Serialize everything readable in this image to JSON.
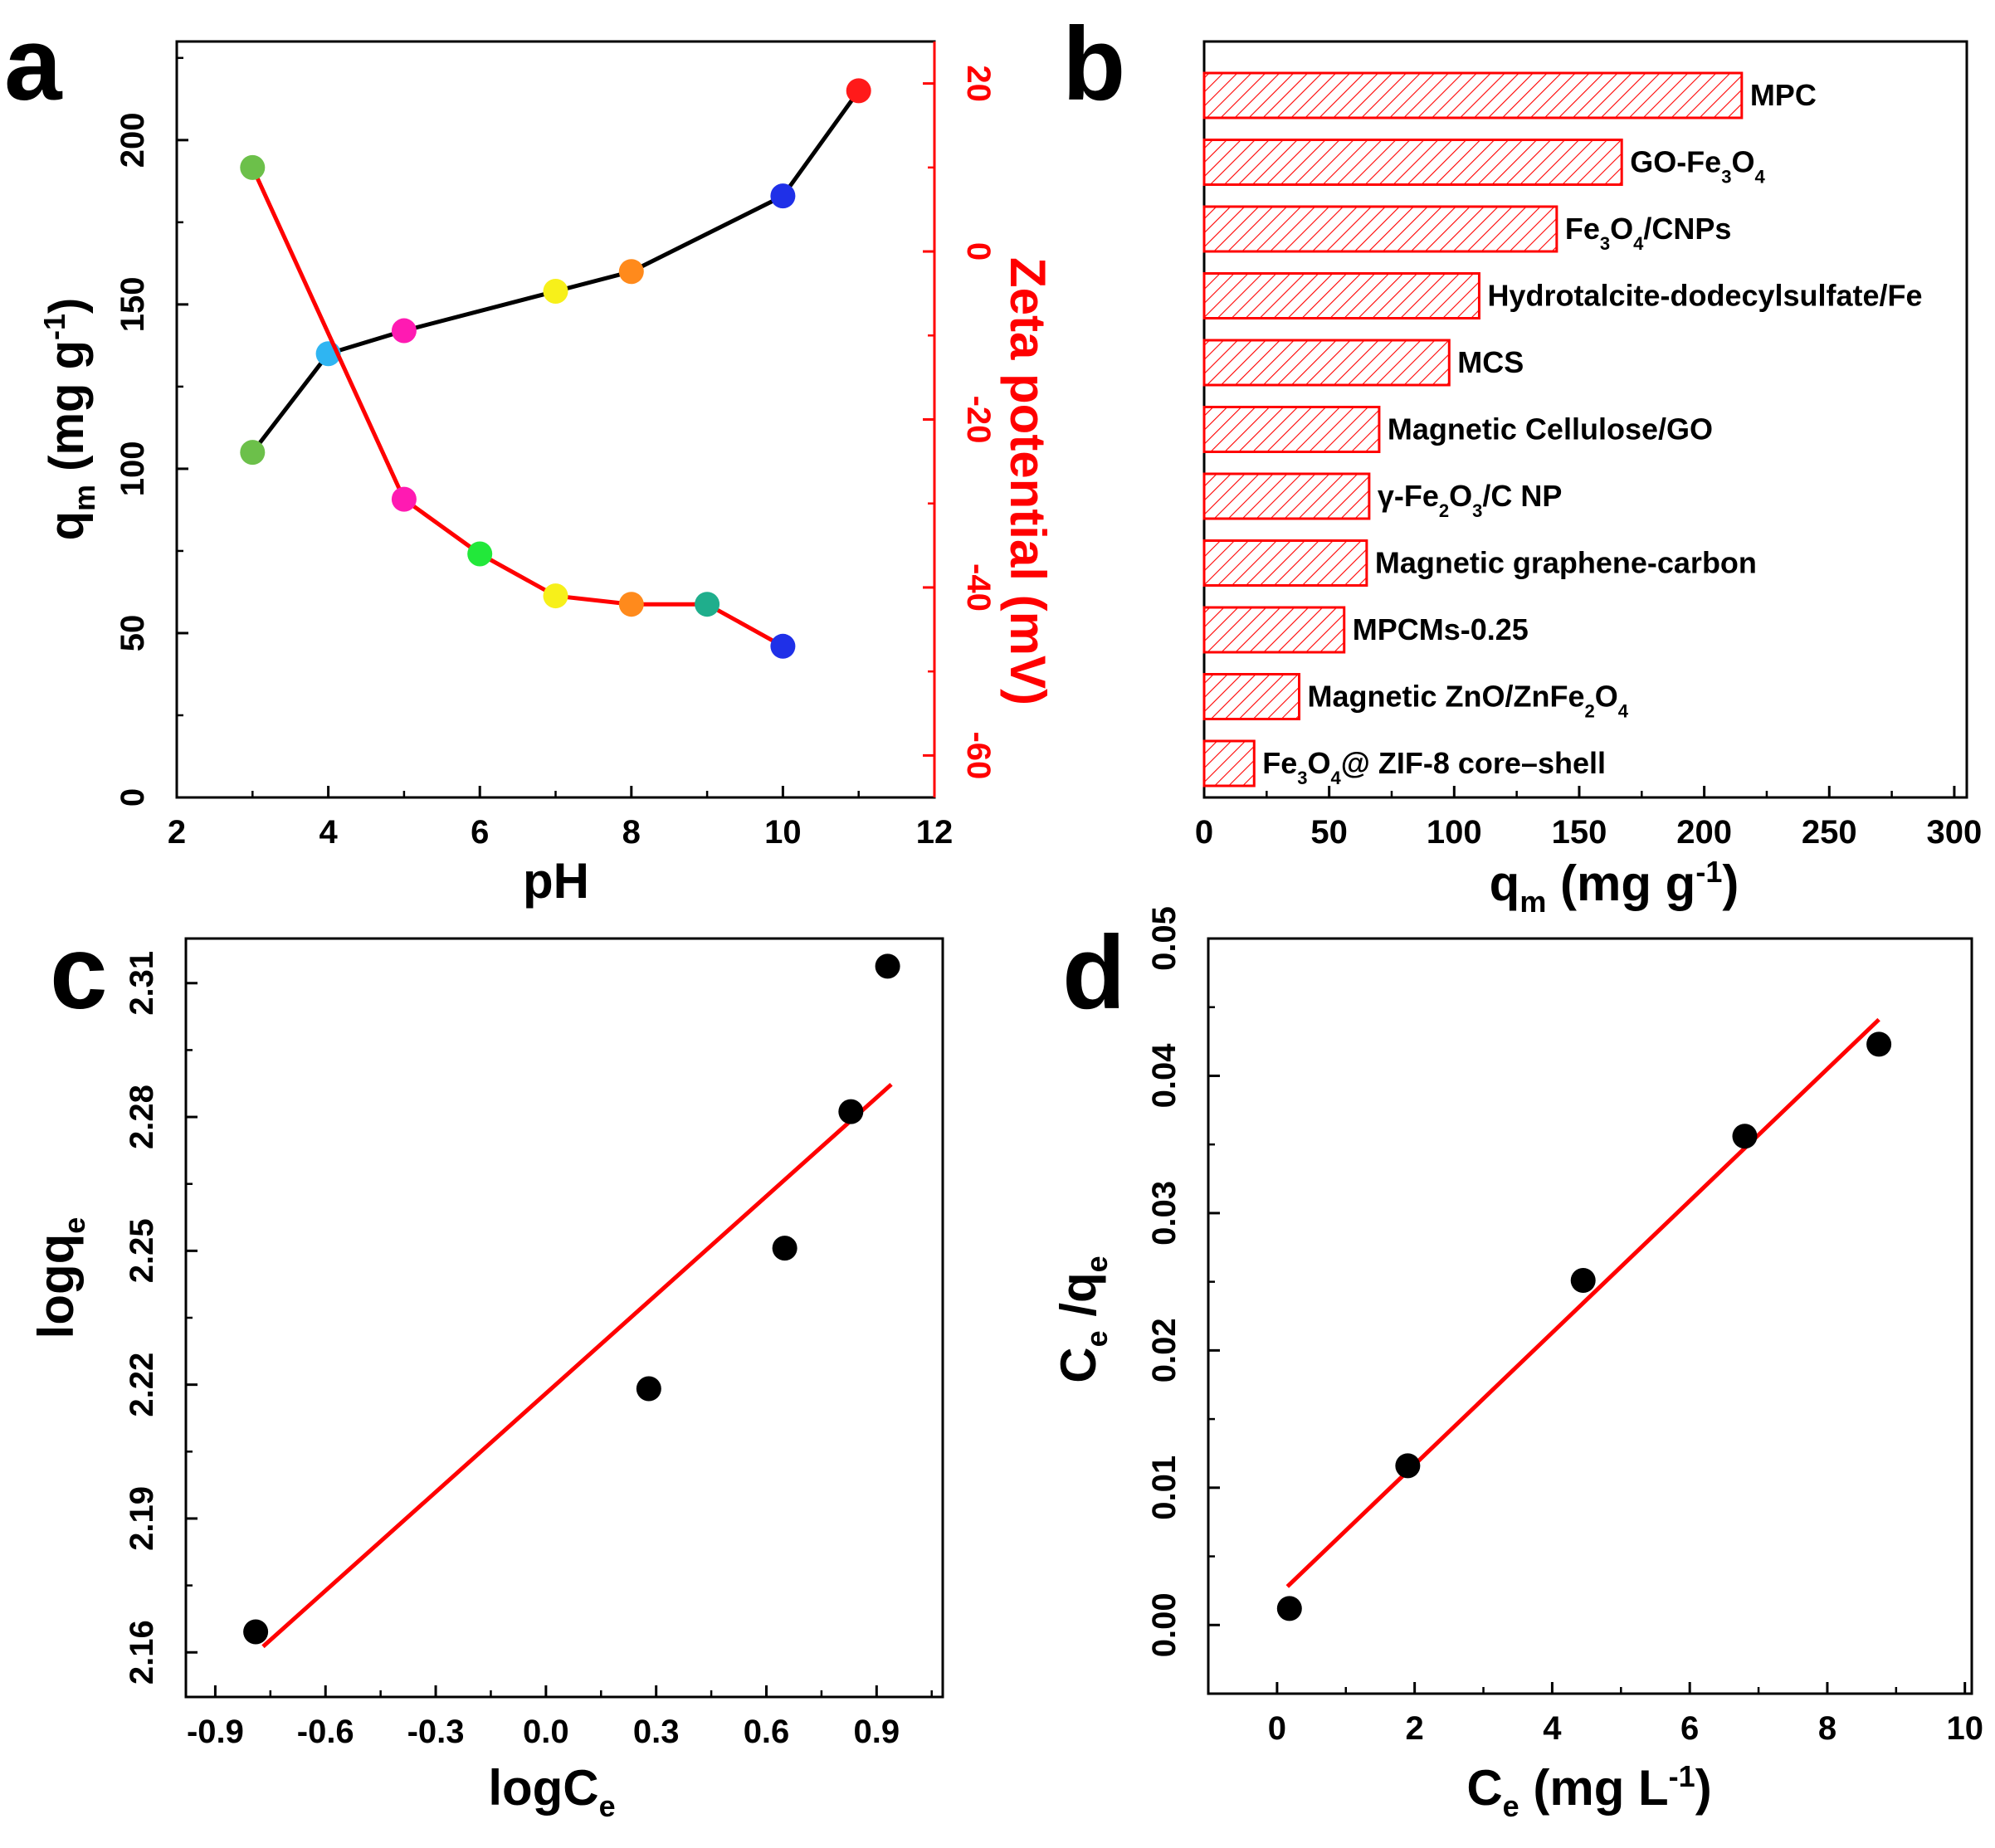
{
  "chart_data": [
    {
      "panel": "a",
      "type": "line",
      "panel_label": "a",
      "xlabel": "pH",
      "ylabel": {
        "main": "q",
        "sub": "m",
        "rest": " (mg g",
        "sup": "-1",
        "end": ")"
      },
      "y2label": "Zeta potential (mV)",
      "xlim": [
        2,
        12
      ],
      "ylim": [
        0,
        230
      ],
      "y2lim": [
        -65,
        25
      ],
      "xticks": [
        "2",
        "4",
        "6",
        "8",
        "10",
        "12"
      ],
      "yticks": [
        "0",
        "50",
        "100",
        "150",
        "200"
      ],
      "y2ticks": [
        "20",
        "0",
        "-20",
        "-40",
        "-60"
      ],
      "colors": {
        "qm_line": "#000000",
        "zeta_line": "#ff0000",
        "right_axis": "#ff0000"
      },
      "series": [
        {
          "name": "qm",
          "axis": "left",
          "x": [
            3,
            4,
            5,
            7,
            8,
            10,
            11
          ],
          "y": [
            105,
            135,
            142,
            154,
            160,
            183,
            215
          ],
          "marker_colors": [
            "#6cc04a",
            "#2fb5f2",
            "#ff1ab2",
            "#f7f01a",
            "#ff8a1c",
            "#1f30e8",
            "#ff1a1a"
          ]
        },
        {
          "name": "Zeta potential",
          "axis": "right",
          "x": [
            3,
            5,
            6,
            7,
            8,
            9,
            10
          ],
          "y": [
            10,
            -29.5,
            -36,
            -41,
            -42,
            -42,
            -47
          ],
          "marker_colors": [
            "#6cc04a",
            "#ff1ab2",
            "#22e83a",
            "#f7f01a",
            "#ff8a1c",
            "#1fae8c",
            "#1f30e8"
          ]
        }
      ]
    },
    {
      "panel": "b",
      "type": "bar",
      "orientation": "horizontal",
      "panel_label": "b",
      "xlabel": {
        "main": "q",
        "sub": "m",
        "rest": " (mg g",
        "sup": "-1",
        "end": ")"
      },
      "xlim": [
        0,
        305
      ],
      "xticks": [
        "0",
        "50",
        "100",
        "150",
        "200",
        "250",
        "300"
      ],
      "bar_color": "#ff0000",
      "categories": [
        [
          {
            "t": "MPC"
          }
        ],
        [
          {
            "t": "GO-Fe"
          },
          {
            "t": "3",
            "s": "sub"
          },
          {
            "t": "O"
          },
          {
            "t": "4",
            "s": "sub"
          }
        ],
        [
          {
            "t": "Fe"
          },
          {
            "t": "3",
            "s": "sub"
          },
          {
            "t": "O"
          },
          {
            "t": "4",
            "s": "sub"
          },
          {
            "t": "/CNPs"
          }
        ],
        [
          {
            "t": "Hydrotalcite-dodecylsulfate/Fe"
          }
        ],
        [
          {
            "t": "MCS"
          }
        ],
        [
          {
            "t": "Magnetic Cellulose/GO"
          }
        ],
        [
          {
            "t": "γ-Fe"
          },
          {
            "t": "2",
            "s": "sub"
          },
          {
            "t": "O"
          },
          {
            "t": "3",
            "s": "sub"
          },
          {
            "t": "/C NP"
          }
        ],
        [
          {
            "t": "Magnetic graphene-carbon"
          }
        ],
        [
          {
            "t": "MPCMs-0.25"
          }
        ],
        [
          {
            "t": "Magnetic ZnO/ZnFe"
          },
          {
            "t": "2",
            "s": "sub"
          },
          {
            "t": "O"
          },
          {
            "t": "4",
            "s": "sub"
          }
        ],
        [
          {
            "t": "Fe"
          },
          {
            "t": "3",
            "s": "sub"
          },
          {
            "t": "O"
          },
          {
            "t": "4",
            "s": "sub"
          },
          {
            "t": "@ ZIF-8 core–shell"
          }
        ]
      ],
      "values": [
        215,
        167,
        141,
        110,
        98,
        70,
        66,
        65,
        56,
        38,
        20
      ]
    },
    {
      "panel": "c",
      "type": "scatter",
      "panel_label": "c",
      "xlabel": {
        "main": "logC",
        "sub": "e"
      },
      "ylabel": {
        "main": "logq",
        "sub": "e"
      },
      "xlim": [
        -0.98,
        1.08
      ],
      "ylim": [
        2.15,
        2.32
      ],
      "xticks": [
        "-0.9",
        "-0.6",
        "-0.3",
        "0.0",
        "0.3",
        "0.6",
        "0.9"
      ],
      "yticks": [
        "2.16",
        "2.19",
        "2.22",
        "2.25",
        "2.28",
        "2.31"
      ],
      "points": {
        "x": [
          -0.79,
          0.28,
          0.65,
          0.83,
          0.93
        ],
        "y": [
          2.1646,
          2.2191,
          2.2506,
          2.2812,
          2.3138
        ]
      },
      "fit_line": {
        "x": [
          -0.77,
          0.94
        ],
        "y": [
          2.1613,
          2.2873
        ],
        "color": "#ff0000"
      },
      "point_color": "#000000"
    },
    {
      "panel": "d",
      "type": "scatter",
      "panel_label": "d",
      "xlabel": {
        "main": "C",
        "sub": "e",
        "rest": " (mg L",
        "sup": "-1",
        "end": ")"
      },
      "ylabel": {
        "main": "C",
        "sub": "e",
        "rest": " /q",
        "sub2": "e"
      },
      "xlim": [
        -1.0,
        10.1
      ],
      "ylim": [
        -0.005,
        0.05
      ],
      "xticks": [
        "0",
        "2",
        "4",
        "6",
        "8",
        "10"
      ],
      "yticks": [
        "0.00",
        "0.01",
        "0.02",
        "0.03",
        "0.04",
        "0.05"
      ],
      "points": {
        "x": [
          0.18,
          1.9,
          4.45,
          6.8,
          8.75
        ],
        "y": [
          0.0012,
          0.0116,
          0.0251,
          0.0356,
          0.0423
        ]
      },
      "fit_line": {
        "x": [
          0.15,
          8.75
        ],
        "y": [
          0.0028,
          0.0441
        ],
        "color": "#ff0000"
      },
      "point_color": "#000000"
    }
  ]
}
